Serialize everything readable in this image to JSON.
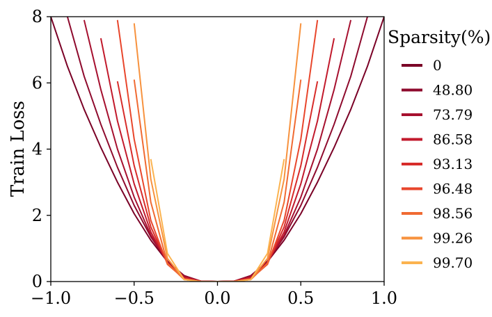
{
  "chart_data": {
    "type": "line",
    "title": "",
    "xlabel": "",
    "ylabel": "Train Loss",
    "xlim": [
      -1.0,
      1.0
    ],
    "ylim": [
      0,
      8
    ],
    "xticks": [
      -1.0,
      -0.5,
      0.0,
      0.5,
      1.0
    ],
    "xtick_labels": [
      "−1.0",
      "−0.5",
      "0.0",
      "0.5",
      "1.0"
    ],
    "yticks": [
      0,
      2,
      4,
      6,
      8
    ],
    "ytick_labels": [
      "0",
      "2",
      "4",
      "6",
      "8"
    ],
    "grid": false,
    "legend": {
      "title": "Sparsity(%)",
      "placement": "right-outside"
    },
    "x": [
      -1.0,
      -0.9,
      -0.8,
      -0.7,
      -0.6,
      -0.5,
      -0.4,
      -0.3,
      -0.2,
      -0.1,
      0.0,
      0.1,
      0.2,
      0.3,
      0.4,
      0.5,
      0.6,
      0.7,
      0.8,
      0.9,
      1.0
    ],
    "series": [
      {
        "name": "0",
        "color": "#7a0026",
        "values": [
          8.0,
          6.5,
          5.2,
          4.05,
          3.0,
          2.05,
          1.25,
          0.6,
          0.18,
          0.01,
          0.0,
          0.01,
          0.18,
          0.6,
          1.25,
          2.05,
          3.0,
          4.05,
          5.2,
          6.5,
          8.0
        ]
      },
      {
        "name": "48.80",
        "color": "#8e0a2d",
        "values": [
          null,
          8.0,
          6.2,
          4.75,
          3.45,
          2.3,
          1.35,
          0.62,
          0.17,
          0.01,
          0.0,
          0.01,
          0.17,
          0.62,
          1.35,
          2.3,
          3.45,
          4.75,
          6.2,
          8.0,
          null
        ]
      },
      {
        "name": "73.79",
        "color": "#a6102f",
        "values": [
          null,
          null,
          7.9,
          5.8,
          4.0,
          2.55,
          1.4,
          0.6,
          0.15,
          0.01,
          0.0,
          0.01,
          0.15,
          0.6,
          1.4,
          2.55,
          4.0,
          5.8,
          7.9,
          null,
          null
        ]
      },
      {
        "name": "86.58",
        "color": "#c21a2c",
        "values": [
          null,
          null,
          null,
          7.35,
          4.85,
          2.95,
          1.5,
          0.57,
          0.12,
          0.01,
          0.0,
          0.01,
          0.12,
          0.57,
          1.5,
          2.95,
          4.85,
          7.35,
          null,
          null,
          null
        ]
      },
      {
        "name": "93.13",
        "color": "#d72c2a",
        "values": [
          null,
          null,
          null,
          null,
          6.05,
          3.5,
          1.65,
          0.55,
          0.1,
          0.01,
          0.0,
          0.01,
          0.1,
          0.55,
          1.65,
          3.5,
          6.05,
          null,
          null,
          null,
          null
        ]
      },
      {
        "name": "96.48",
        "color": "#e8462c",
        "values": [
          null,
          null,
          null,
          null,
          7.9,
          4.3,
          1.85,
          0.52,
          0.08,
          0.0,
          0.0,
          0.0,
          0.08,
          0.52,
          1.85,
          4.3,
          7.9,
          null,
          null,
          null,
          null
        ]
      },
      {
        "name": "98.56",
        "color": "#f06a32",
        "values": [
          null,
          null,
          null,
          null,
          null,
          6.1,
          2.4,
          0.55,
          0.06,
          0.0,
          0.0,
          0.0,
          0.06,
          0.55,
          2.4,
          6.1,
          null,
          null,
          null,
          null,
          null
        ]
      },
      {
        "name": "99.26",
        "color": "#f7923e",
        "values": [
          null,
          null,
          null,
          null,
          null,
          7.8,
          3.1,
          0.7,
          0.06,
          0.0,
          0.0,
          0.0,
          0.06,
          0.7,
          3.1,
          7.8,
          null,
          null,
          null,
          null,
          null
        ]
      },
      {
        "name": "99.70",
        "color": "#fbb34f",
        "values": [
          null,
          null,
          null,
          null,
          null,
          null,
          3.7,
          0.85,
          0.06,
          0.0,
          0.0,
          0.0,
          0.06,
          0.85,
          3.7,
          null,
          null,
          null,
          null,
          null,
          null
        ]
      }
    ]
  }
}
